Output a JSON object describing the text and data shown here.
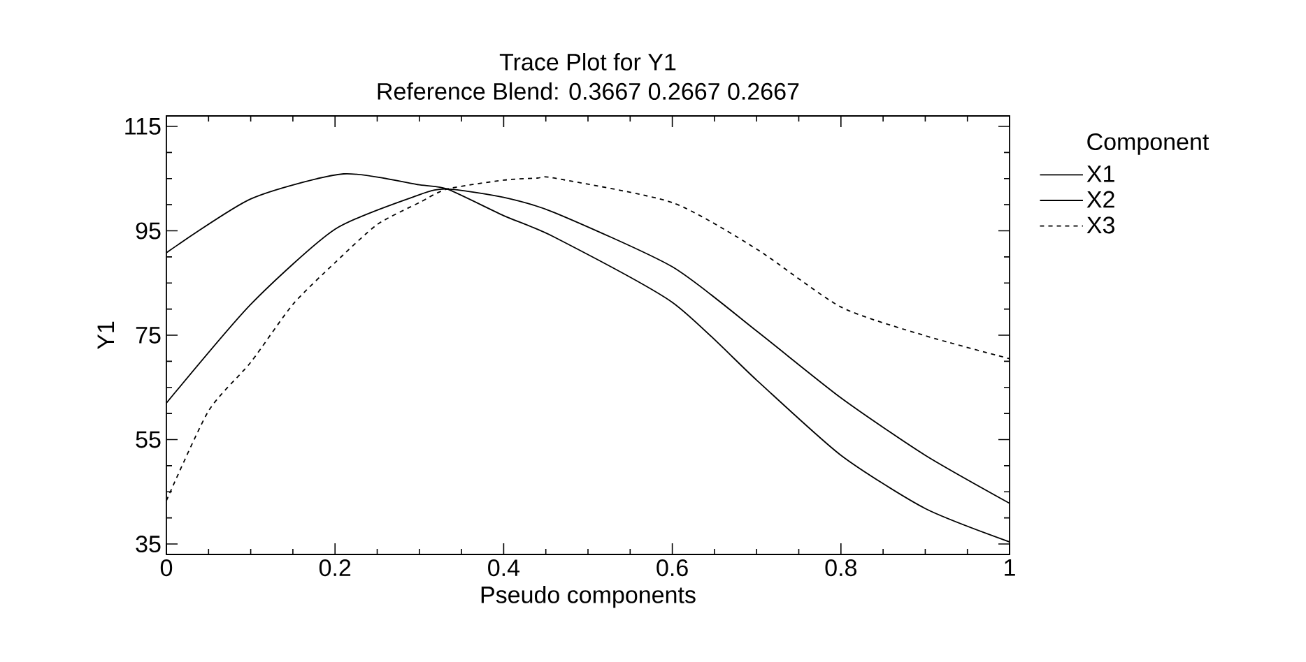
{
  "chart_data": {
    "type": "line",
    "title": "Trace Plot for Y1",
    "subtitle": "Reference Blend: 0.3667 0.2667 0.2667",
    "xlabel": "Pseudo components",
    "ylabel": "Y1",
    "legend_title": "Component",
    "legend": "right",
    "marker": "none",
    "xlim": [
      0,
      1
    ],
    "ylim": [
      33,
      117
    ],
    "xticks": [
      0,
      0.2,
      0.4,
      0.6,
      0.8,
      1
    ],
    "yticks": [
      35,
      55,
      75,
      95,
      115
    ],
    "series": [
      {
        "name": "X1",
        "color": "#000000",
        "line_style": "solid",
        "x": [
          0,
          0.1,
          0.21,
          0.3,
          0.333,
          0.4,
          0.46,
          0.6,
          0.7,
          0.8,
          0.9,
          1
        ],
        "values": [
          90.8,
          101.1,
          105.9,
          103.8,
          103,
          97.9,
          93.8,
          81.3,
          66.4,
          52.0,
          41.8,
          35.4
        ]
      },
      {
        "name": "X2",
        "color": "#000000",
        "line_style": "solid",
        "x": [
          0,
          0.1,
          0.2,
          0.3,
          0.333,
          0.4,
          0.46,
          0.6,
          0.7,
          0.8,
          0.9,
          1
        ],
        "values": [
          62.0,
          80.9,
          95.3,
          101.9,
          103,
          101.4,
          98.5,
          88.1,
          75.8,
          63.0,
          52.0,
          42.8
        ]
      },
      {
        "name": "X3",
        "color": "#000000",
        "line_style": "dashed",
        "x": [
          0,
          0.05,
          0.1,
          0.15,
          0.2,
          0.25,
          0.3,
          0.333,
          0.4,
          0.44,
          0.46,
          0.6,
          0.7,
          0.8,
          0.9,
          1
        ],
        "values": [
          43.3,
          60.5,
          69.8,
          80.9,
          88.9,
          96.2,
          100.4,
          103,
          104.7,
          105.1,
          105.1,
          100.4,
          91.5,
          80.4,
          74.9,
          70.5
        ]
      }
    ]
  }
}
